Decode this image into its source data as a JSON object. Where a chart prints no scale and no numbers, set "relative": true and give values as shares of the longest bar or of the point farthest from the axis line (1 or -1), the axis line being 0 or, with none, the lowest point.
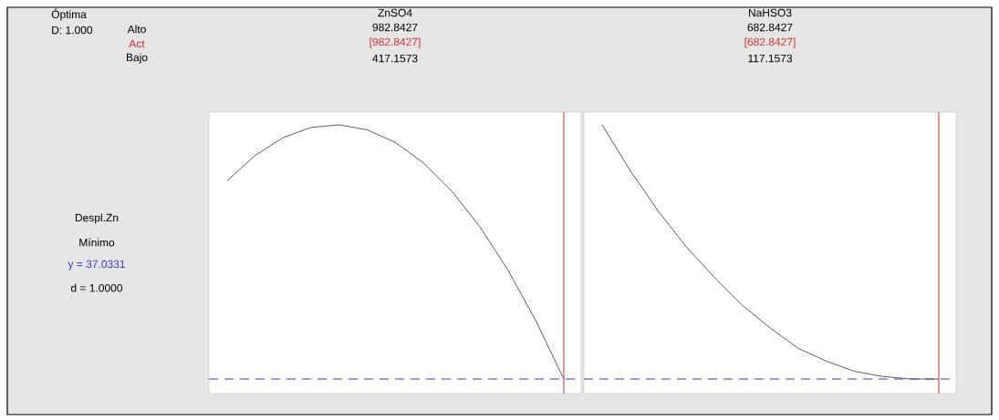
{
  "chart_data": [
    {
      "type": "line",
      "title": "ZnSO4",
      "relative": true,
      "color": "#333333",
      "categories": [
        null,
        null,
        null,
        null,
        null,
        null,
        null,
        null,
        null,
        null,
        null,
        null,
        null
      ],
      "values": [
        0.78,
        0.88,
        0.95,
        0.99,
        1.0,
        0.98,
        0.93,
        0.85,
        0.74,
        0.6,
        0.43,
        0.23,
        0
      ],
      "ref_lines": [
        {
          "axis": "x",
          "label": "[982.8427]",
          "color": "#d03030"
        },
        {
          "axis": "y",
          "value": 0,
          "color": "#3a3ac8",
          "line_style": "dashed"
        }
      ],
      "annotations": [
        "982.8427",
        "417.1573",
        "Óptima",
        "D: 1.000",
        "Alto",
        "Act",
        "Bajo",
        "Despl.Zn",
        "Mínimo",
        "y = 37.0331",
        "d = 1.0000"
      ]
    },
    {
      "type": "line",
      "title": "NaHSO3",
      "relative": true,
      "color": "#333333",
      "categories": [
        null,
        null,
        null,
        null,
        null,
        null,
        null,
        null,
        null,
        null,
        null,
        null,
        null
      ],
      "values": [
        1.0,
        0.82,
        0.66,
        0.52,
        0.4,
        0.29,
        0.2,
        0.12,
        0.07,
        0.03,
        0.01,
        0,
        0
      ],
      "ref_lines": [
        {
          "axis": "x",
          "label": "[682.8427]",
          "color": "#d03030"
        },
        {
          "axis": "y",
          "value": 0,
          "color": "#3a3ac8",
          "line_style": "dashed"
        }
      ],
      "annotations": [
        "682.8427",
        "117.1573"
      ]
    }
  ]
}
